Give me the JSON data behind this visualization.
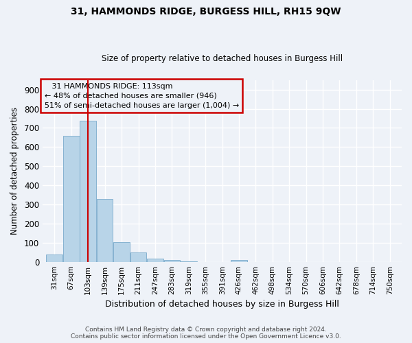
{
  "title": "31, HAMMONDS RIDGE, BURGESS HILL, RH15 9QW",
  "subtitle": "Size of property relative to detached houses in Burgess Hill",
  "xlabel": "Distribution of detached houses by size in Burgess Hill",
  "ylabel": "Number of detached properties",
  "footer_line1": "Contains HM Land Registry data © Crown copyright and database right 2024.",
  "footer_line2": "Contains public sector information licensed under the Open Government Licence v3.0.",
  "annotation_line1": "   31 HAMMONDS RIDGE: 113sqm",
  "annotation_line2": "← 48% of detached houses are smaller (946)",
  "annotation_line3": "51% of semi-detached houses are larger (1,004) →",
  "bar_color": "#b8d4e8",
  "bar_edge_color": "#7aabcc",
  "vline_color": "#cc0000",
  "vline_x": 103,
  "annotation_box_color": "#cc0000",
  "background_color": "#eef2f8",
  "grid_color": "#ffffff",
  "categories": [
    31,
    67,
    103,
    139,
    175,
    211,
    247,
    283,
    319,
    355,
    391,
    426,
    462,
    498,
    534,
    570,
    606,
    642,
    678,
    714,
    750
  ],
  "bin_width": 36,
  "bar_heights": [
    40,
    657,
    737,
    330,
    102,
    48,
    18,
    8,
    3,
    0,
    0,
    8,
    0,
    0,
    0,
    0,
    0,
    0,
    0,
    0,
    0
  ],
  "ylim": [
    0,
    950
  ],
  "yticks": [
    0,
    100,
    200,
    300,
    400,
    500,
    600,
    700,
    800,
    900
  ]
}
